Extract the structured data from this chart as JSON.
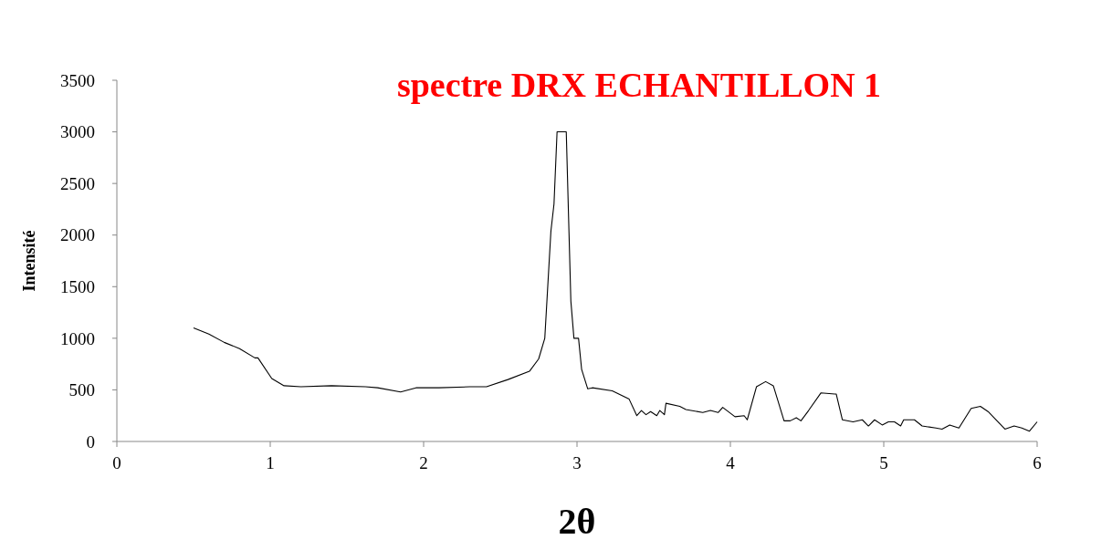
{
  "chart_data": {
    "type": "line",
    "title": "spectre DRX ECHANTILLON 1",
    "xlabel": "2θ",
    "ylabel": "Intensité",
    "xlim": [
      0,
      6
    ],
    "xticks": [
      0,
      1,
      2,
      3,
      4,
      5,
      6
    ],
    "ylim": [
      0,
      3500
    ],
    "yticks": [
      0,
      500,
      1000,
      1500,
      2000,
      2500,
      3000,
      3500
    ],
    "grid": false,
    "marker": "none",
    "line_style": "solid",
    "series": [
      {
        "color": "#000000",
        "x": [
          0.5,
          0.6,
          0.7,
          0.8,
          0.9,
          0.92,
          1.01,
          1.09,
          1.2,
          1.4,
          1.62,
          1.7,
          1.85,
          1.95,
          2.1,
          2.3,
          2.41,
          2.55,
          2.69,
          2.75,
          2.79,
          2.83,
          2.85,
          2.87,
          2.89,
          2.93,
          2.96,
          2.98,
          3.01,
          3.03,
          3.07,
          3.1,
          3.23,
          3.34,
          3.39,
          3.42,
          3.45,
          3.48,
          3.52,
          3.54,
          3.57,
          3.58,
          3.67,
          3.71,
          3.82,
          3.87,
          3.92,
          3.95,
          4.03,
          4.09,
          4.11,
          4.17,
          4.23,
          4.28,
          4.35,
          4.39,
          4.43,
          4.46,
          4.51,
          4.59,
          4.68,
          4.69,
          4.73,
          4.8,
          4.86,
          4.9,
          4.94,
          4.99,
          5.03,
          5.07,
          5.11,
          5.13,
          5.2,
          5.25,
          5.34,
          5.38,
          5.43,
          5.49,
          5.57,
          5.63,
          5.68,
          5.79,
          5.85,
          5.9,
          5.95,
          6
        ],
        "values": [
          1100,
          1040,
          960,
          900,
          810,
          810,
          610,
          540,
          530,
          540,
          530,
          520,
          480,
          520,
          520,
          530,
          530,
          600,
          680,
          800,
          1000,
          2040,
          2300,
          3000,
          3000,
          3000,
          1360,
          1000,
          1000,
          700,
          510,
          520,
          490,
          410,
          250,
          300,
          260,
          290,
          250,
          300,
          260,
          370,
          340,
          310,
          280,
          300,
          280,
          330,
          240,
          250,
          210,
          530,
          580,
          540,
          200,
          200,
          230,
          200,
          300,
          470,
          460,
          460,
          210,
          190,
          210,
          150,
          210,
          160,
          190,
          190,
          150,
          210,
          210,
          150,
          130,
          120,
          160,
          130,
          320,
          340,
          290,
          120,
          150,
          130,
          100,
          190
        ]
      }
    ]
  }
}
